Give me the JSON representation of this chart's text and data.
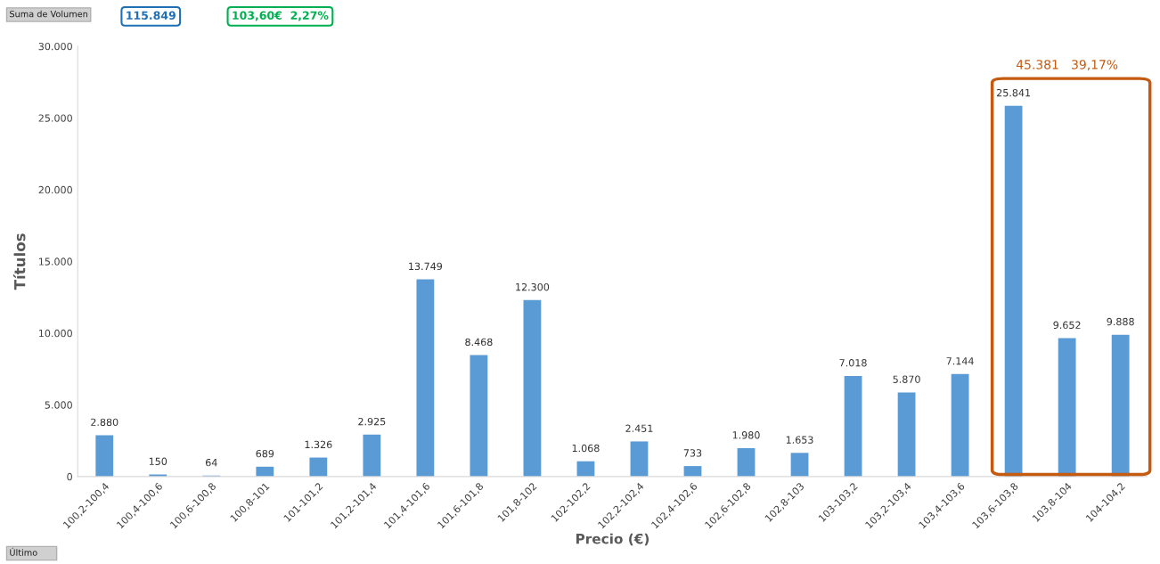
{
  "chart_data": {
    "type": "bar",
    "xlabel": "Precio (€)",
    "ylabel": "Títulos",
    "categories": [
      "100,2-100,4",
      "100,4-100,6",
      "100,6-100,8",
      "100,8-101",
      "101-101,2",
      "101,2-101,4",
      "101,4-101,6",
      "101,6-101,8",
      "101,8-102",
      "102-102,2",
      "102,2-102,4",
      "102,4-102,6",
      "102,6-102,8",
      "102,8-103",
      "103-103,2",
      "103,2-103,4",
      "103,4-103,6",
      "103,6-103,8",
      "103,8-104",
      "104-104,2"
    ],
    "values": [
      2880,
      150,
      64,
      689,
      1326,
      2925,
      13749,
      8468,
      12300,
      1068,
      2451,
      733,
      1980,
      1653,
      7018,
      5870,
      7144,
      25841,
      9652,
      9888
    ],
    "value_labels": [
      "2.880",
      "150",
      "64",
      "689",
      "1.326",
      "2.925",
      "13.749",
      "8.468",
      "12.300",
      "1.068",
      "2.451",
      "733",
      "1.980",
      "1.653",
      "7.018",
      "5.870",
      "7.144",
      "25.841",
      "9.652",
      "9.888"
    ],
    "color": "#5b9bd5",
    "ylim": [
      0,
      30000
    ],
    "yticks": [
      {
        "value": 0,
        "label": "0"
      },
      {
        "value": 5000,
        "label": "5.000"
      },
      {
        "value": 10000,
        "label": "10.000"
      },
      {
        "value": 15000,
        "label": "15.000"
      },
      {
        "value": 20000,
        "label": "20.000"
      },
      {
        "value": 25000,
        "label": "25.000"
      },
      {
        "value": 30000,
        "label": "30.000"
      }
    ],
    "grid": false,
    "annotations": [
      "Suma de Volumen",
      "115.849",
      "103,60€",
      "2,27%",
      "Último",
      "45.381",
      "39,17%"
    ]
  }
}
